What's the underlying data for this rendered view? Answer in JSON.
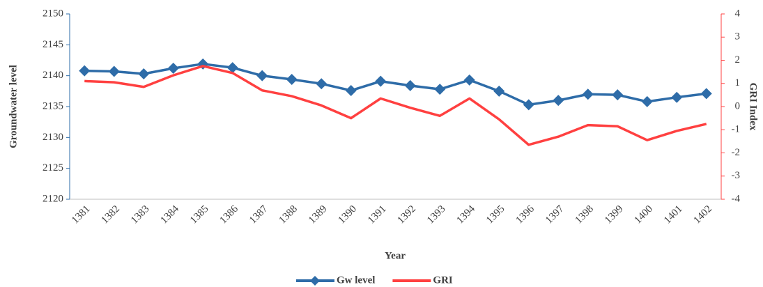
{
  "chart_data": {
    "type": "line",
    "x_label": "Year",
    "y_label": "Groundwater level",
    "y2_label": "GRI Index",
    "categories": [
      "1381",
      "1382",
      "1383",
      "1384",
      "1385",
      "1386",
      "1387",
      "1388",
      "1389",
      "1390",
      "1391",
      "1392",
      "1393",
      "1394",
      "1395",
      "1396",
      "1397",
      "1398",
      "1399",
      "1400",
      "1401",
      "1402"
    ],
    "series": [
      {
        "name": "Gw level",
        "color": "#2e6ca8",
        "marker": "diamond",
        "values": [
          2140.8,
          2140.7,
          2140.3,
          2141.2,
          2141.9,
          2141.3,
          2140.0,
          2139.4,
          2138.7,
          2137.6,
          2139.1,
          2138.4,
          2137.8,
          2139.3,
          2137.5,
          2135.3,
          2136.0,
          2137.0,
          2136.9,
          2135.8,
          2136.5,
          2137.1
        ]
      },
      {
        "name": "GRI",
        "color": "#ff4040",
        "axis": "y2",
        "values": [
          1.1,
          1.05,
          0.85,
          1.35,
          1.75,
          1.45,
          0.7,
          0.45,
          0.05,
          -0.5,
          0.35,
          -0.05,
          -0.4,
          0.35,
          -0.55,
          -1.65,
          -1.3,
          -0.8,
          -0.85,
          -1.45,
          -1.05,
          -0.75
        ]
      }
    ],
    "ylim": [
      2120,
      2150
    ],
    "yticks": [
      2120,
      2125,
      2130,
      2135,
      2140,
      2145,
      2150
    ],
    "y2lim": [
      -4,
      4
    ],
    "y2ticks": [
      -4,
      -3,
      -2,
      -1,
      0,
      1,
      2,
      3,
      4
    ],
    "grid": false,
    "legend": "bottom"
  }
}
